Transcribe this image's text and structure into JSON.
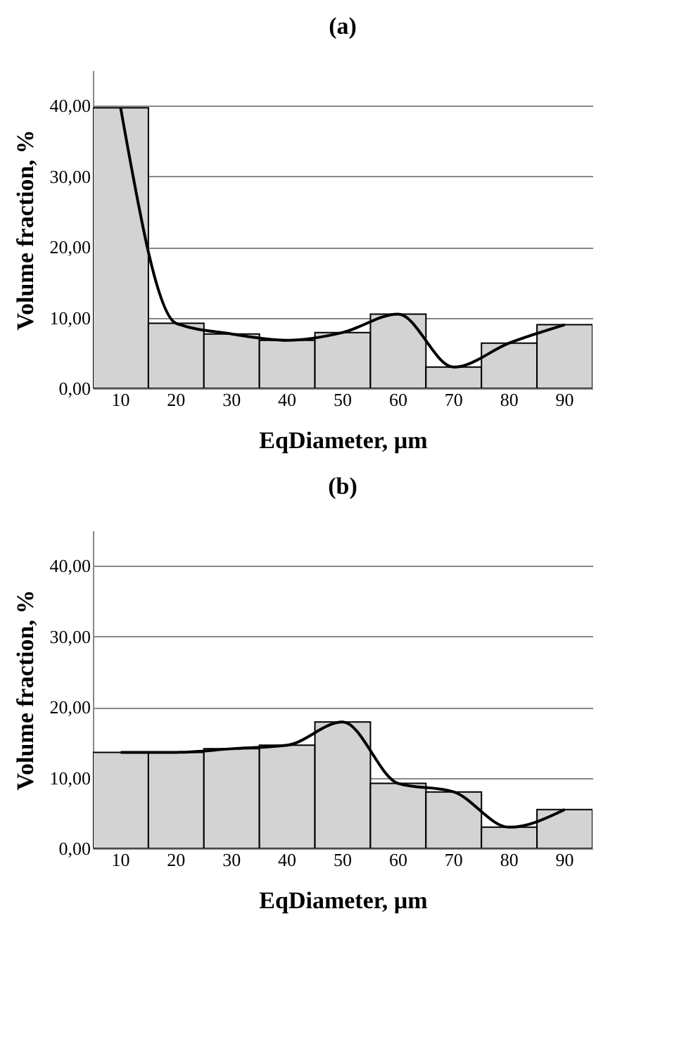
{
  "chart_data": [
    {
      "type": "bar",
      "title": "(a)",
      "xlabel": "EqDiameter, µm",
      "ylabel": "Volume fraction, %",
      "categories": [
        "10",
        "20",
        "30",
        "40",
        "50",
        "60",
        "70",
        "80",
        "90"
      ],
      "series": [
        {
          "color": "#d3d3d3",
          "values": [
            39.7,
            9.2,
            7.7,
            6.8,
            7.9,
            10.5,
            3.0,
            6.4,
            9.0
          ]
        },
        {
          "type": "line",
          "color": "#000000",
          "values": [
            39.7,
            9.2,
            7.7,
            6.8,
            7.9,
            10.5,
            3.0,
            6.4,
            9.0
          ]
        }
      ],
      "ylim": [
        0,
        45
      ],
      "yticks": [
        {
          "value": 0,
          "label": "0,00"
        },
        {
          "value": 10,
          "label": "10,00"
        },
        {
          "value": 20,
          "label": "20,00"
        },
        {
          "value": 30,
          "label": "30,00"
        },
        {
          "value": 40,
          "label": "40,00"
        }
      ],
      "grid": "y",
      "marker": "none"
    },
    {
      "type": "bar",
      "title": "(b)",
      "xlabel": "EqDiameter, µm",
      "ylabel": "Volume fraction, %",
      "categories": [
        "10",
        "20",
        "30",
        "40",
        "50",
        "60",
        "70",
        "80",
        "90"
      ],
      "series": [
        {
          "color": "#d3d3d3",
          "values": [
            13.6,
            13.6,
            14.1,
            14.6,
            17.9,
            9.2,
            8.0,
            3.0,
            5.5
          ]
        },
        {
          "type": "line",
          "color": "#000000",
          "values": [
            13.6,
            13.6,
            14.1,
            14.6,
            17.9,
            9.2,
            8.0,
            3.0,
            5.5
          ]
        }
      ],
      "ylim": [
        0,
        45
      ],
      "yticks": [
        {
          "value": 0,
          "label": "0,00"
        },
        {
          "value": 10,
          "label": "10,00"
        },
        {
          "value": 20,
          "label": "20,00"
        },
        {
          "value": 30,
          "label": "30,00"
        },
        {
          "value": 40,
          "label": "40,00"
        }
      ],
      "grid": "y",
      "marker": "none"
    }
  ]
}
